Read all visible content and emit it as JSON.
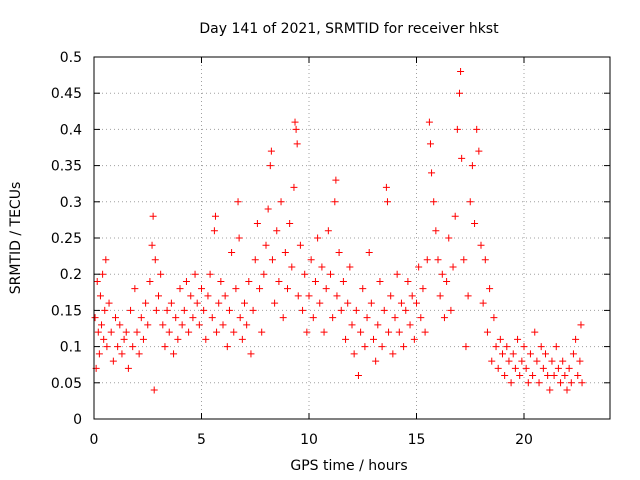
{
  "chart_data": {
    "type": "scatter",
    "title": "Day 141 of 2021, SRMTID for receiver hkst",
    "xlabel": "GPS time / hours",
    "ylabel": "SRMTID / TECUs",
    "xlim": [
      0,
      24
    ],
    "ylim": [
      0,
      0.5
    ],
    "xticks": [
      0,
      5,
      10,
      15,
      20
    ],
    "yticks": [
      0,
      0.05,
      0.1,
      0.15,
      0.2,
      0.25,
      0.3,
      0.35,
      0.4,
      0.45,
      0.5
    ],
    "xtick_labels": [
      "0",
      "5",
      "10",
      "15",
      "20"
    ],
    "ytick_labels": [
      "0",
      "0.05",
      "0.1",
      "0.15",
      "0.2",
      "0.25",
      "0.3",
      "0.35",
      "0.4",
      "0.45",
      "0.5"
    ],
    "grid": true,
    "marker": "+",
    "color": "#ff0000",
    "series": [
      {
        "name": "SRMTID",
        "points": [
          [
            0.05,
            0.14
          ],
          [
            0.1,
            0.07
          ],
          [
            0.15,
            0.19
          ],
          [
            0.2,
            0.12
          ],
          [
            0.25,
            0.09
          ],
          [
            0.3,
            0.17
          ],
          [
            0.35,
            0.13
          ],
          [
            0.4,
            0.2
          ],
          [
            0.45,
            0.11
          ],
          [
            0.5,
            0.15
          ],
          [
            0.55,
            0.22
          ],
          [
            0.6,
            0.1
          ],
          [
            0.7,
            0.16
          ],
          [
            0.8,
            0.12
          ],
          [
            0.9,
            0.08
          ],
          [
            1.0,
            0.14
          ],
          [
            1.1,
            0.1
          ],
          [
            1.2,
            0.13
          ],
          [
            1.3,
            0.09
          ],
          [
            1.4,
            0.11
          ],
          [
            1.5,
            0.12
          ],
          [
            1.6,
            0.07
          ],
          [
            1.7,
            0.15
          ],
          [
            1.8,
            0.1
          ],
          [
            1.9,
            0.18
          ],
          [
            2.0,
            0.12
          ],
          [
            2.1,
            0.09
          ],
          [
            2.2,
            0.14
          ],
          [
            2.3,
            0.11
          ],
          [
            2.4,
            0.16
          ],
          [
            2.5,
            0.13
          ],
          [
            2.6,
            0.19
          ],
          [
            2.7,
            0.24
          ],
          [
            2.75,
            0.28
          ],
          [
            2.8,
            0.04
          ],
          [
            2.85,
            0.22
          ],
          [
            2.9,
            0.15
          ],
          [
            3.0,
            0.17
          ],
          [
            3.1,
            0.2
          ],
          [
            3.2,
            0.13
          ],
          [
            3.3,
            0.1
          ],
          [
            3.4,
            0.15
          ],
          [
            3.5,
            0.12
          ],
          [
            3.6,
            0.16
          ],
          [
            3.7,
            0.09
          ],
          [
            3.8,
            0.14
          ],
          [
            3.9,
            0.11
          ],
          [
            4.0,
            0.18
          ],
          [
            4.1,
            0.13
          ],
          [
            4.2,
            0.15
          ],
          [
            4.3,
            0.19
          ],
          [
            4.4,
            0.12
          ],
          [
            4.5,
            0.17
          ],
          [
            4.6,
            0.14
          ],
          [
            4.7,
            0.2
          ],
          [
            4.8,
            0.16
          ],
          [
            4.9,
            0.13
          ],
          [
            5.0,
            0.18
          ],
          [
            5.1,
            0.15
          ],
          [
            5.2,
            0.11
          ],
          [
            5.3,
            0.17
          ],
          [
            5.4,
            0.2
          ],
          [
            5.5,
            0.14
          ],
          [
            5.6,
            0.26
          ],
          [
            5.65,
            0.28
          ],
          [
            5.7,
            0.12
          ],
          [
            5.8,
            0.16
          ],
          [
            5.9,
            0.19
          ],
          [
            6.0,
            0.13
          ],
          [
            6.1,
            0.17
          ],
          [
            6.2,
            0.1
          ],
          [
            6.3,
            0.15
          ],
          [
            6.4,
            0.23
          ],
          [
            6.5,
            0.12
          ],
          [
            6.6,
            0.18
          ],
          [
            6.7,
            0.3
          ],
          [
            6.75,
            0.25
          ],
          [
            6.8,
            0.14
          ],
          [
            6.9,
            0.11
          ],
          [
            7.0,
            0.16
          ],
          [
            7.1,
            0.13
          ],
          [
            7.2,
            0.19
          ],
          [
            7.3,
            0.09
          ],
          [
            7.4,
            0.15
          ],
          [
            7.5,
            0.22
          ],
          [
            7.6,
            0.27
          ],
          [
            7.7,
            0.18
          ],
          [
            7.8,
            0.12
          ],
          [
            7.9,
            0.2
          ],
          [
            8.0,
            0.24
          ],
          [
            8.1,
            0.29
          ],
          [
            8.2,
            0.35
          ],
          [
            8.25,
            0.37
          ],
          [
            8.3,
            0.22
          ],
          [
            8.4,
            0.16
          ],
          [
            8.5,
            0.26
          ],
          [
            8.6,
            0.19
          ],
          [
            8.7,
            0.3
          ],
          [
            8.8,
            0.14
          ],
          [
            8.9,
            0.23
          ],
          [
            9.0,
            0.18
          ],
          [
            9.1,
            0.27
          ],
          [
            9.2,
            0.21
          ],
          [
            9.3,
            0.32
          ],
          [
            9.35,
            0.41
          ],
          [
            9.4,
            0.4
          ],
          [
            9.45,
            0.38
          ],
          [
            9.5,
            0.17
          ],
          [
            9.6,
            0.24
          ],
          [
            9.7,
            0.15
          ],
          [
            9.8,
            0.2
          ],
          [
            9.9,
            0.12
          ],
          [
            10.0,
            0.17
          ],
          [
            10.1,
            0.22
          ],
          [
            10.2,
            0.14
          ],
          [
            10.3,
            0.19
          ],
          [
            10.4,
            0.25
          ],
          [
            10.5,
            0.16
          ],
          [
            10.6,
            0.21
          ],
          [
            10.7,
            0.12
          ],
          [
            10.8,
            0.18
          ],
          [
            10.9,
            0.26
          ],
          [
            11.0,
            0.2
          ],
          [
            11.1,
            0.14
          ],
          [
            11.2,
            0.3
          ],
          [
            11.25,
            0.33
          ],
          [
            11.3,
            0.17
          ],
          [
            11.4,
            0.23
          ],
          [
            11.5,
            0.15
          ],
          [
            11.6,
            0.19
          ],
          [
            11.7,
            0.11
          ],
          [
            11.8,
            0.16
          ],
          [
            11.9,
            0.21
          ],
          [
            12.0,
            0.13
          ],
          [
            12.1,
            0.09
          ],
          [
            12.2,
            0.15
          ],
          [
            12.3,
            0.06
          ],
          [
            12.4,
            0.12
          ],
          [
            12.5,
            0.18
          ],
          [
            12.6,
            0.1
          ],
          [
            12.7,
            0.14
          ],
          [
            12.8,
            0.23
          ],
          [
            12.9,
            0.16
          ],
          [
            13.0,
            0.11
          ],
          [
            13.1,
            0.08
          ],
          [
            13.2,
            0.13
          ],
          [
            13.3,
            0.19
          ],
          [
            13.4,
            0.1
          ],
          [
            13.5,
            0.15
          ],
          [
            13.6,
            0.32
          ],
          [
            13.65,
            0.3
          ],
          [
            13.7,
            0.12
          ],
          [
            13.8,
            0.17
          ],
          [
            13.9,
            0.09
          ],
          [
            14.0,
            0.14
          ],
          [
            14.1,
            0.2
          ],
          [
            14.2,
            0.12
          ],
          [
            14.3,
            0.16
          ],
          [
            14.4,
            0.1
          ],
          [
            14.5,
            0.15
          ],
          [
            14.6,
            0.19
          ],
          [
            14.7,
            0.13
          ],
          [
            14.8,
            0.17
          ],
          [
            14.9,
            0.11
          ],
          [
            15.0,
            0.16
          ],
          [
            15.1,
            0.21
          ],
          [
            15.2,
            0.14
          ],
          [
            15.3,
            0.18
          ],
          [
            15.4,
            0.12
          ],
          [
            15.5,
            0.22
          ],
          [
            15.6,
            0.41
          ],
          [
            15.65,
            0.38
          ],
          [
            15.7,
            0.34
          ],
          [
            15.8,
            0.3
          ],
          [
            15.9,
            0.26
          ],
          [
            16.0,
            0.22
          ],
          [
            16.1,
            0.17
          ],
          [
            16.2,
            0.2
          ],
          [
            16.3,
            0.14
          ],
          [
            16.4,
            0.19
          ],
          [
            16.5,
            0.25
          ],
          [
            16.6,
            0.15
          ],
          [
            16.7,
            0.21
          ],
          [
            16.8,
            0.28
          ],
          [
            16.9,
            0.4
          ],
          [
            17.0,
            0.45
          ],
          [
            17.05,
            0.48
          ],
          [
            17.1,
            0.36
          ],
          [
            17.2,
            0.22
          ],
          [
            17.3,
            0.1
          ],
          [
            17.4,
            0.17
          ],
          [
            17.5,
            0.3
          ],
          [
            17.6,
            0.35
          ],
          [
            17.7,
            0.27
          ],
          [
            17.8,
            0.4
          ],
          [
            17.9,
            0.37
          ],
          [
            18.0,
            0.24
          ],
          [
            18.1,
            0.16
          ],
          [
            18.2,
            0.22
          ],
          [
            18.3,
            0.12
          ],
          [
            18.4,
            0.18
          ],
          [
            18.5,
            0.08
          ],
          [
            18.6,
            0.14
          ],
          [
            18.7,
            0.1
          ],
          [
            18.8,
            0.07
          ],
          [
            18.9,
            0.11
          ],
          [
            19.0,
            0.09
          ],
          [
            19.1,
            0.06
          ],
          [
            19.2,
            0.1
          ],
          [
            19.3,
            0.08
          ],
          [
            19.4,
            0.05
          ],
          [
            19.5,
            0.09
          ],
          [
            19.6,
            0.07
          ],
          [
            19.7,
            0.11
          ],
          [
            19.8,
            0.06
          ],
          [
            19.9,
            0.08
          ],
          [
            20.0,
            0.1
          ],
          [
            20.1,
            0.07
          ],
          [
            20.2,
            0.05
          ],
          [
            20.3,
            0.09
          ],
          [
            20.4,
            0.06
          ],
          [
            20.5,
            0.12
          ],
          [
            20.6,
            0.08
          ],
          [
            20.7,
            0.05
          ],
          [
            20.8,
            0.1
          ],
          [
            20.9,
            0.07
          ],
          [
            21.0,
            0.09
          ],
          [
            21.1,
            0.06
          ],
          [
            21.2,
            0.04
          ],
          [
            21.3,
            0.08
          ],
          [
            21.4,
            0.06
          ],
          [
            21.5,
            0.1
          ],
          [
            21.6,
            0.07
          ],
          [
            21.7,
            0.05
          ],
          [
            21.8,
            0.08
          ],
          [
            21.9,
            0.06
          ],
          [
            22.0,
            0.04
          ],
          [
            22.1,
            0.07
          ],
          [
            22.2,
            0.05
          ],
          [
            22.3,
            0.09
          ],
          [
            22.4,
            0.11
          ],
          [
            22.5,
            0.06
          ],
          [
            22.6,
            0.08
          ],
          [
            22.65,
            0.13
          ],
          [
            22.7,
            0.05
          ]
        ]
      }
    ]
  }
}
